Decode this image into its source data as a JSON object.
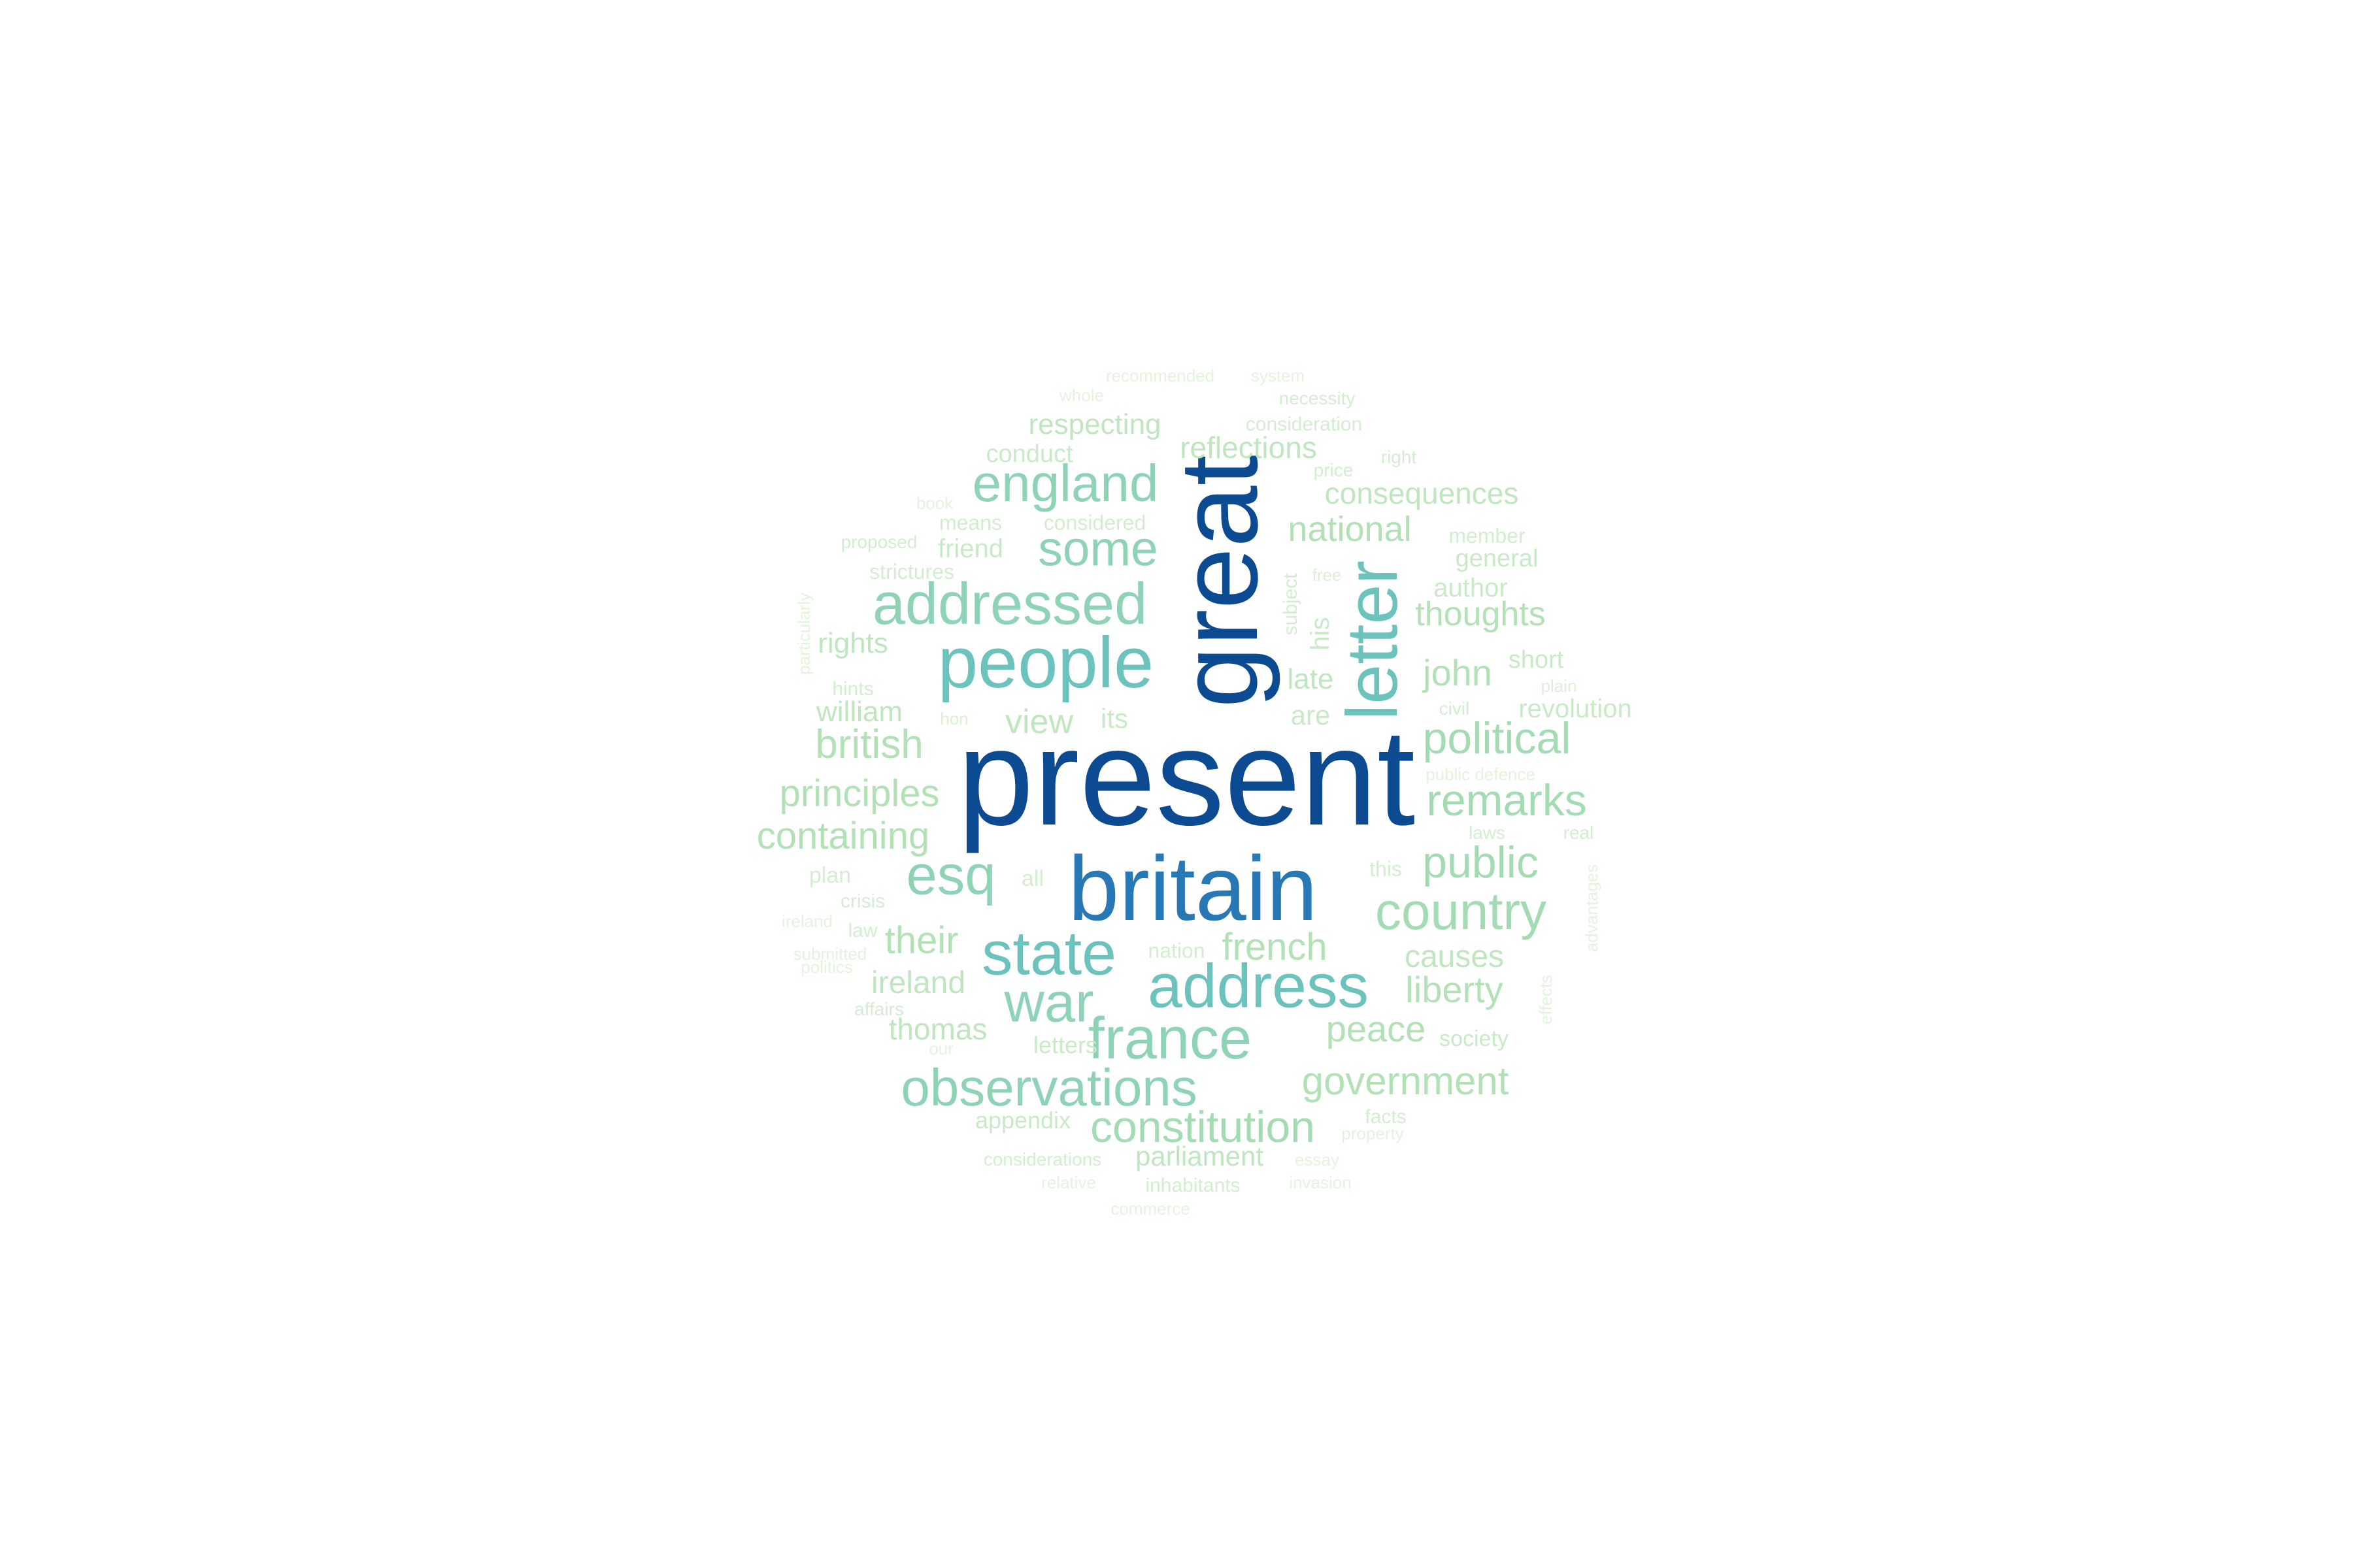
{
  "words": [
    {
      "text": "present",
      "color": "#0c4a92"
    },
    {
      "text": "great",
      "color": "#0c4a92"
    },
    {
      "text": "britain",
      "color": "#2878b5"
    },
    {
      "text": "people",
      "color": "#6cc2bd"
    },
    {
      "text": "letter",
      "color": "#6cc2bd"
    },
    {
      "text": "address",
      "color": "#6cc2bd"
    },
    {
      "text": "state",
      "color": "#6cc2bd"
    },
    {
      "text": "addressed",
      "color": "#8fd3b6"
    },
    {
      "text": "france",
      "color": "#8fd3b6"
    },
    {
      "text": "war",
      "color": "#8fd3b6"
    },
    {
      "text": "esq",
      "color": "#8fd3b6"
    },
    {
      "text": "england",
      "color": "#8fd3b6"
    },
    {
      "text": "some",
      "color": "#8fd3b6"
    },
    {
      "text": "observations",
      "color": "#8fd3b6"
    },
    {
      "text": "country",
      "color": "#a3dcb2"
    },
    {
      "text": "remarks",
      "color": "#a3dcb2"
    },
    {
      "text": "political",
      "color": "#a3dcb2"
    },
    {
      "text": "public",
      "color": "#a3dcb2"
    },
    {
      "text": "constitution",
      "color": "#a3dcb2"
    },
    {
      "text": "government",
      "color": "#b2e1b5"
    },
    {
      "text": "principles",
      "color": "#b2e1b5"
    },
    {
      "text": "containing",
      "color": "#b2e1b5"
    },
    {
      "text": "british",
      "color": "#b2e1b5"
    },
    {
      "text": "french",
      "color": "#b2e1b5"
    },
    {
      "text": "their",
      "color": "#b2e1b5"
    },
    {
      "text": "national",
      "color": "#b2e1b5"
    },
    {
      "text": "peace",
      "color": "#b2e1b5"
    },
    {
      "text": "liberty",
      "color": "#b2e1b5"
    },
    {
      "text": "john",
      "color": "#b2e1b5"
    },
    {
      "text": "thoughts",
      "color": "#b2e1b5"
    },
    {
      "text": "view",
      "color": "#bfe6bf"
    },
    {
      "text": "consequences",
      "color": "#bfe6bf"
    },
    {
      "text": "reflections",
      "color": "#bfe6bf"
    },
    {
      "text": "causes",
      "color": "#bfe6bf"
    },
    {
      "text": "ireland",
      "color": "#bfe6bf"
    },
    {
      "text": "thomas",
      "color": "#bfe6bf"
    },
    {
      "text": "parliament",
      "color": "#bfe6bf"
    },
    {
      "text": "respecting",
      "color": "#bfe6bf"
    },
    {
      "text": "rights",
      "color": "#bfe6bf"
    },
    {
      "text": "william",
      "color": "#bfe6bf"
    },
    {
      "text": "late",
      "color": "#bfe6bf"
    },
    {
      "text": "its",
      "color": "#c8eac6"
    },
    {
      "text": "friend",
      "color": "#c8eac6"
    },
    {
      "text": "author",
      "color": "#c8eac6"
    },
    {
      "text": "general",
      "color": "#c8eac6"
    },
    {
      "text": "revolution",
      "color": "#c8eac6"
    },
    {
      "text": "short",
      "color": "#c8eac6"
    },
    {
      "text": "conduct",
      "color": "#c8eac6"
    },
    {
      "text": "his",
      "color": "#c8eac6"
    },
    {
      "text": "are",
      "color": "#c8eac6"
    },
    {
      "text": "letters",
      "color": "#c8eac6"
    },
    {
      "text": "appendix",
      "color": "#c8eac6"
    },
    {
      "text": "society",
      "color": "#c8eac6"
    },
    {
      "text": "plan",
      "color": "#d2eecf"
    },
    {
      "text": "all",
      "color": "#d2eecf"
    },
    {
      "text": "this",
      "color": "#d2eecf"
    },
    {
      "text": "nation",
      "color": "#d2eecf"
    },
    {
      "text": "member",
      "color": "#d2eecf"
    },
    {
      "text": "considered",
      "color": "#d2eecf"
    },
    {
      "text": "means",
      "color": "#d2eecf"
    },
    {
      "text": "strictures",
      "color": "#d2eecf"
    },
    {
      "text": "proposed",
      "color": "#d2eecf"
    },
    {
      "text": "hints",
      "color": "#d2eecf"
    },
    {
      "text": "crisis",
      "color": "#d2eecf"
    },
    {
      "text": "law",
      "color": "#d2eecf"
    },
    {
      "text": "affairs",
      "color": "#d2eecf"
    },
    {
      "text": "civil",
      "color": "#d2eecf"
    },
    {
      "text": "laws",
      "color": "#d2eecf"
    },
    {
      "text": "real",
      "color": "#d2eecf"
    },
    {
      "text": "facts",
      "color": "#d2eecf"
    },
    {
      "text": "consideration",
      "color": "#d2eecf"
    },
    {
      "text": "considerations",
      "color": "#d2eecf"
    },
    {
      "text": "inhabitants",
      "color": "#d2eecf"
    },
    {
      "text": "necessity",
      "color": "#d2eecf"
    },
    {
      "text": "right",
      "color": "#d2eecf"
    },
    {
      "text": "price",
      "color": "#d2eecf"
    },
    {
      "text": "subject",
      "color": "#d2eecf"
    },
    {
      "text": "hon",
      "color": "#dbf1d5"
    },
    {
      "text": "free",
      "color": "#dbf1d5"
    },
    {
      "text": "plain",
      "color": "#dbf1d5"
    },
    {
      "text": "particularly",
      "color": "#e2f4dc"
    },
    {
      "text": "book",
      "color": "#e2f4dc"
    },
    {
      "text": "whole",
      "color": "#e2f4dc"
    },
    {
      "text": "recommended",
      "color": "#e2f4dc"
    },
    {
      "text": "system",
      "color": "#e2f4dc"
    },
    {
      "text": "relative",
      "color": "#e2f4dc"
    },
    {
      "text": "commerce",
      "color": "#e2f4dc"
    },
    {
      "text": "invasion",
      "color": "#e2f4dc"
    },
    {
      "text": "essay",
      "color": "#e2f4dc"
    },
    {
      "text": "property",
      "color": "#e2f4dc"
    },
    {
      "text": "advantages",
      "color": "#e2f4dc"
    },
    {
      "text": "effects",
      "color": "#e2f4dc"
    },
    {
      "text": "politics",
      "color": "#e2f4dc"
    },
    {
      "text": "ireland",
      "color": "#e2f4dc"
    },
    {
      "text": "submitted",
      "color": "#e2f4dc"
    },
    {
      "text": "public defence",
      "color": "#e2f4dc"
    },
    {
      "text": "our",
      "color": "#e2f4dc"
    }
  ]
}
